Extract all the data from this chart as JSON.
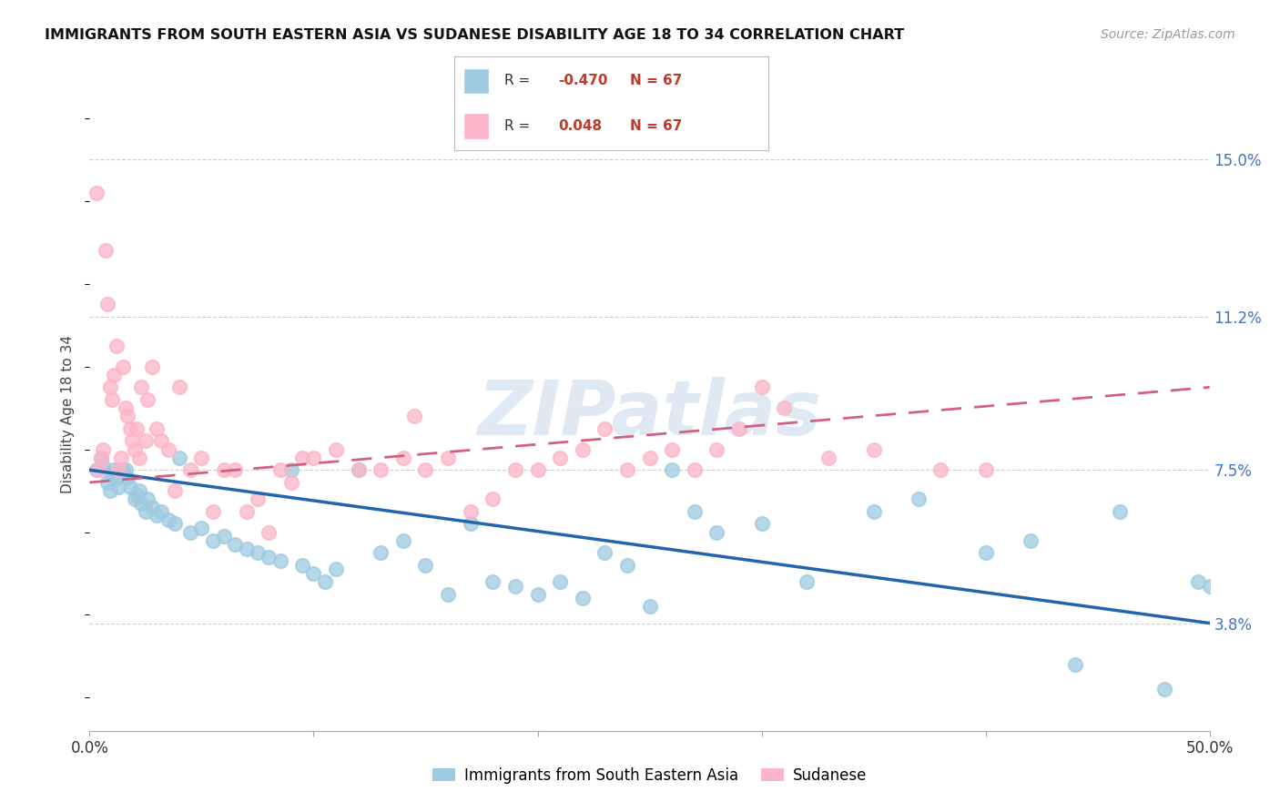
{
  "title": "IMMIGRANTS FROM SOUTH EASTERN ASIA VS SUDANESE DISABILITY AGE 18 TO 34 CORRELATION CHART",
  "source": "Source: ZipAtlas.com",
  "ylabel": "Disability Age 18 to 34",
  "xlim": [
    0.0,
    50.0
  ],
  "ylim": [
    1.2,
    16.5
  ],
  "y_ticks_right": [
    3.8,
    7.5,
    11.2,
    15.0
  ],
  "y_tick_labels_right": [
    "3.8%",
    "7.5%",
    "11.2%",
    "15.0%"
  ],
  "blue_R": "-0.470",
  "blue_N": "67",
  "pink_R": "0.048",
  "pink_N": "67",
  "blue_color": "#9ecae1",
  "pink_color": "#fcb4c8",
  "blue_line_color": "#2166ac",
  "pink_line_color": "#d46080",
  "watermark": "ZIPatlas",
  "blue_scatter_x": [
    0.3,
    0.5,
    0.6,
    0.8,
    0.9,
    1.0,
    1.1,
    1.2,
    1.3,
    1.5,
    1.6,
    1.7,
    1.8,
    2.0,
    2.1,
    2.2,
    2.3,
    2.5,
    2.6,
    2.8,
    3.0,
    3.2,
    3.5,
    3.8,
    4.0,
    4.5,
    5.0,
    5.5,
    6.0,
    6.5,
    7.0,
    7.5,
    8.0,
    8.5,
    9.0,
    9.5,
    10.0,
    10.5,
    11.0,
    12.0,
    13.0,
    14.0,
    15.0,
    16.0,
    17.0,
    18.0,
    19.0,
    20.0,
    21.0,
    22.0,
    23.0,
    24.0,
    25.0,
    26.0,
    27.0,
    28.0,
    30.0,
    32.0,
    35.0,
    37.0,
    40.0,
    42.0,
    44.0,
    46.0,
    48.0,
    49.5,
    50.0
  ],
  "blue_scatter_y": [
    7.5,
    7.8,
    7.6,
    7.2,
    7.0,
    7.4,
    7.5,
    7.3,
    7.1,
    7.5,
    7.5,
    7.3,
    7.1,
    6.8,
    6.9,
    7.0,
    6.7,
    6.5,
    6.8,
    6.6,
    6.4,
    6.5,
    6.3,
    6.2,
    7.8,
    6.0,
    6.1,
    5.8,
    5.9,
    5.7,
    5.6,
    5.5,
    5.4,
    5.3,
    7.5,
    5.2,
    5.0,
    4.8,
    5.1,
    7.5,
    5.5,
    5.8,
    5.2,
    4.5,
    6.2,
    4.8,
    4.7,
    4.5,
    4.8,
    4.4,
    5.5,
    5.2,
    4.2,
    7.5,
    6.5,
    6.0,
    6.2,
    4.8,
    6.5,
    6.8,
    5.5,
    5.8,
    2.8,
    6.5,
    2.2,
    4.8,
    4.7
  ],
  "pink_scatter_x": [
    0.3,
    0.4,
    0.5,
    0.6,
    0.7,
    0.8,
    0.9,
    1.0,
    1.1,
    1.2,
    1.3,
    1.4,
    1.5,
    1.6,
    1.7,
    1.8,
    1.9,
    2.0,
    2.1,
    2.2,
    2.3,
    2.5,
    2.6,
    2.8,
    3.0,
    3.2,
    3.5,
    3.8,
    4.0,
    4.5,
    5.0,
    5.5,
    6.0,
    6.5,
    7.0,
    7.5,
    8.0,
    8.5,
    9.0,
    9.5,
    10.0,
    11.0,
    12.0,
    13.0,
    14.0,
    14.5,
    15.0,
    16.0,
    17.0,
    18.0,
    19.0,
    20.0,
    21.0,
    22.0,
    23.0,
    24.0,
    25.0,
    26.0,
    27.0,
    28.0,
    29.0,
    30.0,
    31.0,
    33.0,
    35.0,
    38.0,
    40.0
  ],
  "pink_scatter_y": [
    14.2,
    7.5,
    7.8,
    8.0,
    12.8,
    11.5,
    9.5,
    9.2,
    9.8,
    10.5,
    7.5,
    7.8,
    10.0,
    9.0,
    8.8,
    8.5,
    8.2,
    8.0,
    8.5,
    7.8,
    9.5,
    8.2,
    9.2,
    10.0,
    8.5,
    8.2,
    8.0,
    7.0,
    9.5,
    7.5,
    7.8,
    6.5,
    7.5,
    7.5,
    6.5,
    6.8,
    6.0,
    7.5,
    7.2,
    7.8,
    7.8,
    8.0,
    7.5,
    7.5,
    7.8,
    8.8,
    7.5,
    7.8,
    6.5,
    6.8,
    7.5,
    7.5,
    7.8,
    8.0,
    8.5,
    7.5,
    7.8,
    8.0,
    7.5,
    8.0,
    8.5,
    9.5,
    9.0,
    7.8,
    8.0,
    7.5,
    7.5
  ]
}
